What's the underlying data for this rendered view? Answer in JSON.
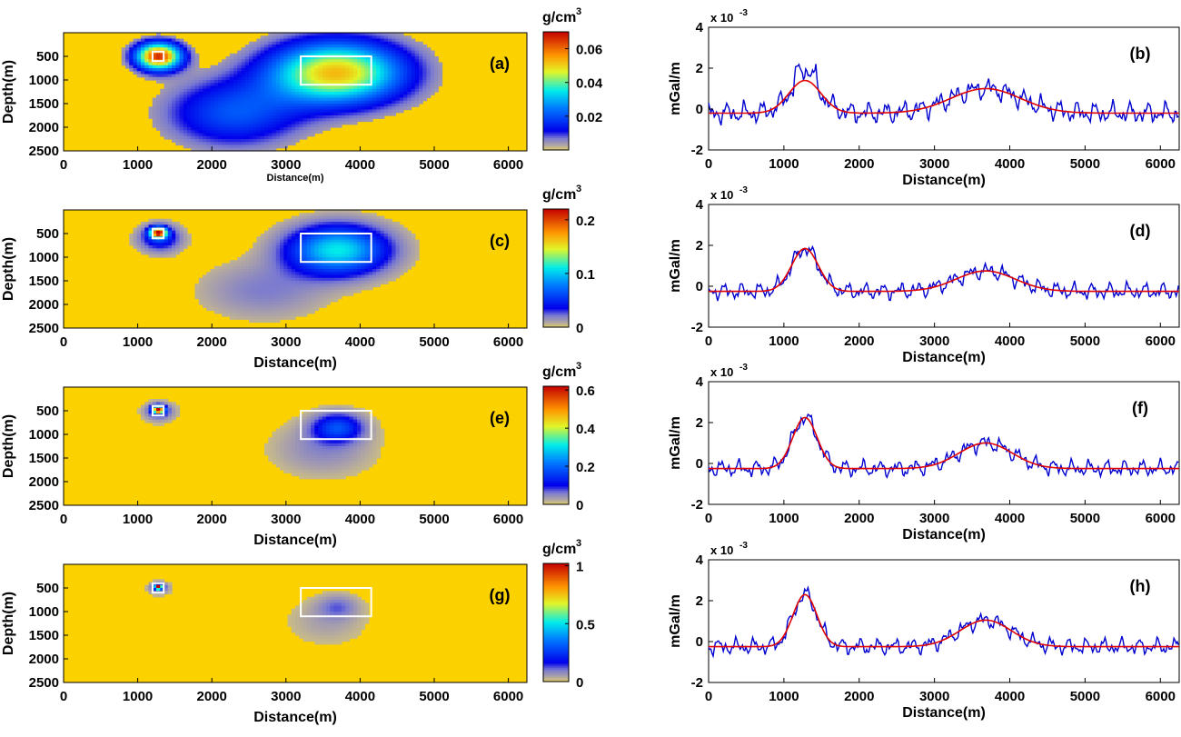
{
  "colors": {
    "background_model": "#fbd100",
    "observed_line": "#0000d0",
    "calculated_line": "#e00000",
    "outline_box": "#ffffff"
  },
  "chart_data": [
    {
      "panel": "(a)",
      "type": "heatmap",
      "xlabel": "Distance(m)",
      "ylabel": "Depth(m)",
      "xlim": [
        0,
        6250
      ],
      "ylim": [
        2500,
        0
      ],
      "xticks": [
        "0",
        "1000",
        "2000",
        "3000",
        "4000",
        "5000",
        "6000"
      ],
      "yticks": [
        "500",
        "1000",
        "1500",
        "2000",
        "2500"
      ],
      "colorbar": {
        "unit": "g/cm",
        "unit_sup": "3",
        "ticks": [
          "0.02",
          "0.04",
          "0.06"
        ],
        "range": [
          0,
          0.07
        ]
      },
      "anomalies": [
        {
          "x": 1280,
          "z": 500,
          "sx": 300,
          "sz": 280,
          "peak": 0.066
        },
        {
          "x": 3680,
          "z": 850,
          "sx": 900,
          "sz": 650,
          "peak": 0.052
        },
        {
          "x": 2300,
          "z": 1700,
          "sx": 900,
          "sz": 700,
          "peak": 0.02
        }
      ],
      "threshold": 0.004,
      "bodies": [
        {
          "x": [
            1200,
            1350
          ],
          "z": [
            400,
            600
          ]
        },
        {
          "x": [
            3200,
            4150
          ],
          "z": [
            500,
            1100
          ]
        }
      ]
    },
    {
      "panel": "(b)",
      "type": "line",
      "xlabel": "Distance(m)",
      "ylabel": "mGal/m",
      "multiplier": "x 10",
      "multiplier_exp": "-3",
      "xlim": [
        0,
        6250
      ],
      "ylim": [
        -2,
        4
      ],
      "xticks": [
        "0",
        "1000",
        "2000",
        "3000",
        "4000",
        "5000",
        "6000"
      ],
      "yticks": [
        "-2",
        "0",
        "2",
        "4"
      ],
      "calc_peaks": [
        {
          "x": 1280,
          "a": 1.6,
          "s": 300
        },
        {
          "x": 3680,
          "a": 1.2,
          "s": 650
        }
      ],
      "base": -0.2
    },
    {
      "panel": "(c)",
      "type": "heatmap",
      "xlabel": "Distance(m)",
      "ylabel": "Depth(m)",
      "xlim": [
        0,
        6250
      ],
      "ylim": [
        2500,
        0
      ],
      "xticks": [
        "0",
        "1000",
        "2000",
        "3000",
        "4000",
        "5000",
        "6000"
      ],
      "yticks": [
        "500",
        "1000",
        "1500",
        "2000",
        "2500"
      ],
      "colorbar": {
        "unit": "g/cm",
        "unit_sup": "3",
        "ticks": [
          "0",
          "0.1",
          "0.2"
        ],
        "range": [
          0,
          0.22
        ]
      },
      "anomalies": [
        {
          "x": 1280,
          "z": 480,
          "sx": 110,
          "sz": 110,
          "peak": 0.2
        },
        {
          "x": 1300,
          "z": 600,
          "sx": 280,
          "sz": 280,
          "peak": 0.05
        },
        {
          "x": 3700,
          "z": 850,
          "sx": 650,
          "sz": 500,
          "peak": 0.11
        },
        {
          "x": 2700,
          "z": 1700,
          "sx": 850,
          "sz": 600,
          "peak": 0.02
        }
      ],
      "threshold": 0.006,
      "bodies": [
        {
          "x": [
            1200,
            1350
          ],
          "z": [
            400,
            600
          ]
        },
        {
          "x": [
            3200,
            4150
          ],
          "z": [
            500,
            1100
          ]
        }
      ]
    },
    {
      "panel": "(d)",
      "type": "line",
      "xlabel": "Distance(m)",
      "ylabel": "mGal/m",
      "multiplier": "x 10",
      "multiplier_exp": "-3",
      "xlim": [
        0,
        6250
      ],
      "ylim": [
        -2,
        4
      ],
      "xticks": [
        "0",
        "1000",
        "2000",
        "3000",
        "4000",
        "5000",
        "6000"
      ],
      "yticks": [
        "-2",
        "0",
        "2",
        "4"
      ],
      "calc_peaks": [
        {
          "x": 1280,
          "a": 2.1,
          "s": 250
        },
        {
          "x": 3680,
          "a": 1.0,
          "s": 550
        }
      ],
      "base": -0.25
    },
    {
      "panel": "(e)",
      "type": "heatmap",
      "xlabel": "Distance(m)",
      "ylabel": "Depth(m)",
      "xlim": [
        0,
        6250
      ],
      "ylim": [
        2500,
        0
      ],
      "xticks": [
        "0",
        "1000",
        "2000",
        "3000",
        "4000",
        "5000",
        "6000"
      ],
      "yticks": [
        "500",
        "1000",
        "1500",
        "2000",
        "2500"
      ],
      "colorbar": {
        "unit": "g/cm",
        "unit_sup": "3",
        "ticks": [
          "0",
          "0.2",
          "0.4",
          "0.6"
        ],
        "range": [
          0,
          0.62
        ]
      },
      "anomalies": [
        {
          "x": 1280,
          "z": 480,
          "sx": 80,
          "sz": 80,
          "peak": 0.6
        },
        {
          "x": 1290,
          "z": 520,
          "sx": 200,
          "sz": 190,
          "peak": 0.09
        },
        {
          "x": 3700,
          "z": 850,
          "sx": 330,
          "sz": 290,
          "peak": 0.16
        },
        {
          "x": 3500,
          "z": 1300,
          "sx": 650,
          "sz": 550,
          "peak": 0.05
        }
      ],
      "threshold": 0.012,
      "bodies": [
        {
          "x": [
            1200,
            1350
          ],
          "z": [
            400,
            600
          ]
        },
        {
          "x": [
            3200,
            4150
          ],
          "z": [
            500,
            1100
          ]
        }
      ]
    },
    {
      "panel": "(f)",
      "type": "line",
      "xlabel": "Distance(m)",
      "ylabel": "mGal/m",
      "multiplier": "x 10",
      "multiplier_exp": "-3",
      "xlim": [
        0,
        6250
      ],
      "ylim": [
        -2,
        4
      ],
      "xticks": [
        "0",
        "1000",
        "2000",
        "3000",
        "4000",
        "5000",
        "6000"
      ],
      "yticks": [
        "-2",
        "0",
        "2",
        "4"
      ],
      "calc_peaks": [
        {
          "x": 1280,
          "a": 2.5,
          "s": 230
        },
        {
          "x": 3680,
          "a": 1.25,
          "s": 500
        }
      ],
      "base": -0.25
    },
    {
      "panel": "(g)",
      "type": "heatmap",
      "xlabel": "Distance(m)",
      "ylabel": "Depth(m)",
      "xlim": [
        0,
        6250
      ],
      "ylim": [
        2500,
        0
      ],
      "xticks": [
        "0",
        "1000",
        "2000",
        "3000",
        "4000",
        "5000",
        "6000"
      ],
      "yticks": [
        "500",
        "1000",
        "1500",
        "2000",
        "2500"
      ],
      "colorbar": {
        "unit": "g/cm",
        "unit_sup": "3",
        "ticks": [
          "0",
          "0.5",
          "1"
        ],
        "range": [
          0,
          1.02
        ]
      },
      "anomalies": [
        {
          "x": 1280,
          "z": 480,
          "sx": 55,
          "sz": 55,
          "peak": 1.0
        },
        {
          "x": 1285,
          "z": 500,
          "sx": 140,
          "sz": 130,
          "peak": 0.12
        },
        {
          "x": 3700,
          "z": 900,
          "sx": 260,
          "sz": 240,
          "peak": 0.09
        },
        {
          "x": 3550,
          "z": 1200,
          "sx": 520,
          "sz": 480,
          "peak": 0.05
        }
      ],
      "threshold": 0.018,
      "bodies": [
        {
          "x": [
            1200,
            1350
          ],
          "z": [
            400,
            600
          ]
        },
        {
          "x": [
            3200,
            4150
          ],
          "z": [
            500,
            1100
          ]
        }
      ]
    },
    {
      "panel": "(h)",
      "type": "line",
      "xlabel": "Distance(m)",
      "ylabel": "mGal/m",
      "multiplier": "x 10",
      "multiplier_exp": "-3",
      "xlim": [
        0,
        6250
      ],
      "ylim": [
        -2,
        4
      ],
      "xticks": [
        "0",
        "1000",
        "2000",
        "3000",
        "4000",
        "5000",
        "6000"
      ],
      "yticks": [
        "-2",
        "0",
        "2",
        "4"
      ],
      "calc_peaks": [
        {
          "x": 1280,
          "a": 2.55,
          "s": 225
        },
        {
          "x": 3680,
          "a": 1.3,
          "s": 480
        }
      ],
      "base": -0.25
    }
  ]
}
